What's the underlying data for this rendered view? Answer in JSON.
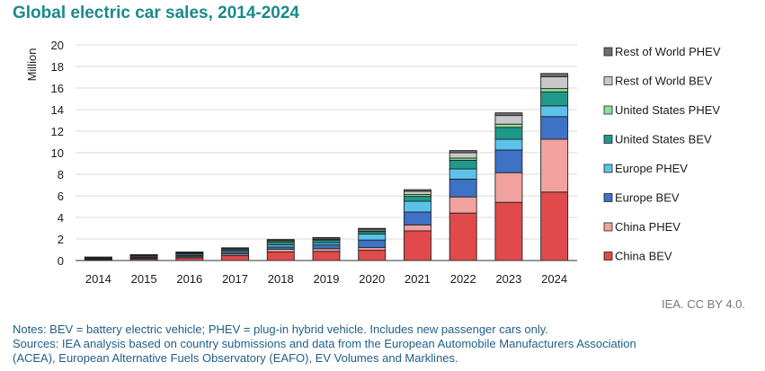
{
  "title": "Global electric car sales, 2014-2024",
  "credit": "IEA. CC BY 4.0.",
  "notes": [
    "Notes: BEV = battery electric vehicle; PHEV = plug-in hybrid vehicle. Includes new passenger cars only.",
    "Sources: IEA analysis based on country submissions and data from the European Automobile Manufacturers Association",
    "(ACEA), European Alternative Fuels Observatory (EAFO), EV Volumes and Marklines."
  ],
  "chart_data": {
    "type": "bar",
    "stacked": true,
    "ylabel": "Million",
    "ylim": [
      0,
      20
    ],
    "yticks": [
      0,
      2,
      4,
      6,
      8,
      10,
      12,
      14,
      16,
      18,
      20
    ],
    "grid": true,
    "legend_position": "right",
    "categories": [
      "2014",
      "2015",
      "2016",
      "2017",
      "2018",
      "2019",
      "2020",
      "2021",
      "2022",
      "2023",
      "2024"
    ],
    "series": [
      {
        "name": "China BEV",
        "color": "#e04a4a",
        "values": [
          0.05,
          0.15,
          0.25,
          0.45,
          0.8,
          0.85,
          0.95,
          2.75,
          4.4,
          5.4,
          6.35
        ]
      },
      {
        "name": "China PHEV",
        "color": "#f2a29e",
        "values": [
          0.02,
          0.05,
          0.1,
          0.15,
          0.25,
          0.25,
          0.25,
          0.55,
          1.5,
          2.75,
          4.9
        ]
      },
      {
        "name": "Europe BEV",
        "color": "#3d72c6",
        "values": [
          0.06,
          0.1,
          0.12,
          0.15,
          0.2,
          0.35,
          0.7,
          1.2,
          1.65,
          2.1,
          2.1
        ]
      },
      {
        "name": "Europe PHEV",
        "color": "#5bc3ea",
        "values": [
          0.05,
          0.1,
          0.12,
          0.15,
          0.2,
          0.2,
          0.55,
          1.0,
          0.95,
          1.0,
          1.0
        ]
      },
      {
        "name": "United States BEV",
        "color": "#1f9a8a",
        "values": [
          0.06,
          0.07,
          0.08,
          0.1,
          0.25,
          0.25,
          0.23,
          0.45,
          0.8,
          1.1,
          1.3
        ]
      },
      {
        "name": "United States PHEV",
        "color": "#8ddf9a",
        "values": [
          0.05,
          0.04,
          0.07,
          0.1,
          0.12,
          0.08,
          0.07,
          0.17,
          0.2,
          0.3,
          0.3
        ]
      },
      {
        "name": "Rest of World BEV",
        "color": "#c8c8c8",
        "values": [
          0.02,
          0.02,
          0.03,
          0.05,
          0.08,
          0.1,
          0.15,
          0.3,
          0.5,
          0.8,
          1.1
        ]
      },
      {
        "name": "Rest of World PHEV",
        "color": "#6e6e6e",
        "values": [
          0.01,
          0.01,
          0.02,
          0.03,
          0.05,
          0.05,
          0.08,
          0.15,
          0.2,
          0.25,
          0.3
        ]
      }
    ]
  }
}
